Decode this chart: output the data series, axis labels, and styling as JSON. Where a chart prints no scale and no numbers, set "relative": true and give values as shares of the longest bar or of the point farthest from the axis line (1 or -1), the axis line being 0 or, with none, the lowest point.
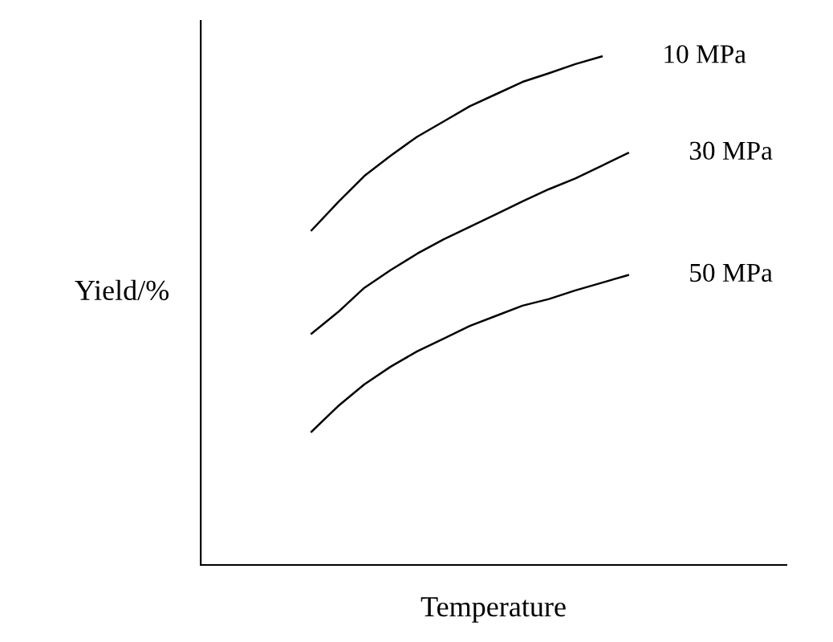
{
  "chart_data": {
    "type": "line",
    "relative": true,
    "xlabel": "Temperature",
    "ylabel": "Yield/%",
    "legend": false,
    "marker": "none",
    "line_style": "solid",
    "categories": [
      null,
      null,
      null,
      null,
      null,
      null,
      null,
      null,
      null,
      null,
      null,
      null,
      null,
      null,
      null,
      null,
      null,
      null,
      null,
      null,
      null,
      null,
      null
    ],
    "series": [
      {
        "name": "10 MPa",
        "color": "#000000",
        "values": [
          null,
          null,
          null,
          null,
          0.658,
          0.713,
          0.765,
          0.805,
          0.842,
          0.872,
          0.902,
          0.926,
          0.95,
          0.967,
          0.985,
          1,
          null,
          null,
          null,
          null,
          null,
          null,
          null
        ]
      },
      {
        "name": "30 MPa",
        "color": "#000000",
        "values": [
          null,
          null,
          null,
          null,
          0.455,
          0.497,
          0.545,
          0.58,
          0.612,
          0.64,
          0.665,
          0.69,
          0.715,
          0.739,
          0.76,
          0.785,
          0.81,
          null,
          null,
          null,
          null,
          null,
          null
        ]
      },
      {
        "name": "50 MPa",
        "color": "#000000",
        "values": [
          null,
          null,
          null,
          null,
          0.262,
          0.312,
          0.355,
          0.39,
          0.42,
          0.445,
          0.47,
          0.49,
          0.51,
          0.523,
          0.54,
          0.555,
          0.57,
          null,
          null,
          null,
          null,
          null,
          null
        ]
      }
    ]
  }
}
